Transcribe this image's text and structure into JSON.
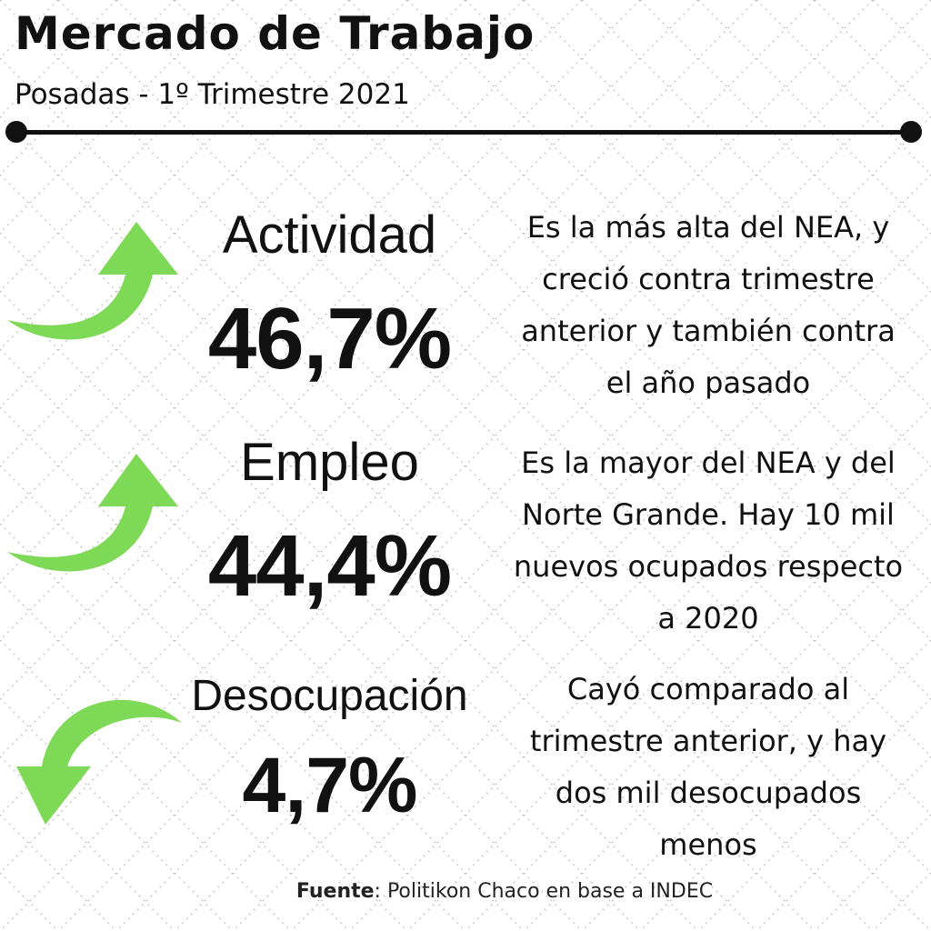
{
  "header": {
    "title": "Mercado de Trabajo",
    "subtitle": "Posadas - 1º Trimestre 2021"
  },
  "indicators": [
    {
      "label": "Actividad",
      "value": "46,7%",
      "trend": "up",
      "description": "Es la más alta del NEA, y creció contra trimestre anterior y también contra el año pasado"
    },
    {
      "label": "Empleo",
      "value": "44,4%",
      "trend": "up",
      "description": "Es la mayor del NEA y del Norte Grande. Hay 10 mil nuevos ocupados respecto a 2020"
    },
    {
      "label": "Desocupación",
      "value": "4,7%",
      "trend": "down",
      "description": "Cayó comparado al trimestre anterior, y hay dos mil desocupados menos"
    }
  ],
  "source": {
    "label": "Fuente",
    "text": ": Politikon Chaco en base a INDEC"
  },
  "colors": {
    "arrow": "#7ed957",
    "text": "#111111",
    "background": "#ffffff"
  }
}
